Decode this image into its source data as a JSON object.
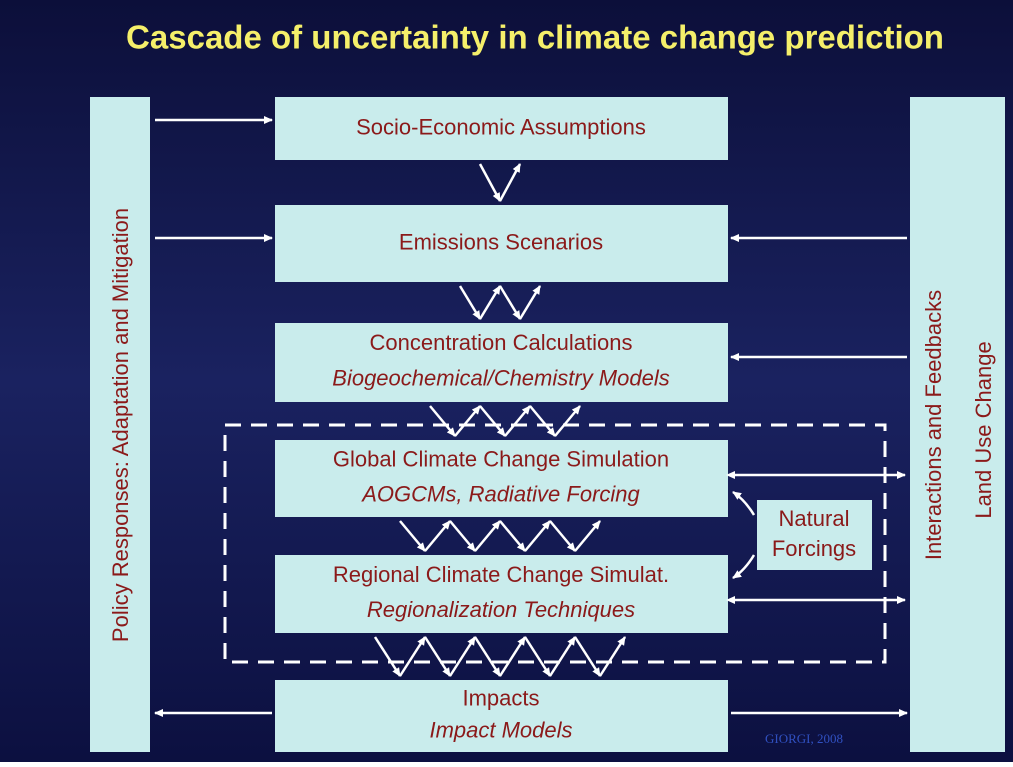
{
  "title": "Cascade of uncertainty in climate change prediction",
  "left_panel": {
    "label": "Policy Responses: Adaptation and Mitigation"
  },
  "right_panel": {
    "labels": [
      "Interactions and Feedbacks",
      "Land Use Change"
    ]
  },
  "boxes": [
    {
      "label": "Socio-Economic Assumptions"
    },
    {
      "label": "Emissions Scenarios"
    },
    {
      "label": "Concentration Calculations",
      "sublabel": "Biogeochemical/Chemistry Models"
    },
    {
      "label": "Global Climate Change Simulation",
      "sublabel": "AOGCMs, Radiative Forcing"
    },
    {
      "label": "Regional Climate Change Simulat.",
      "sublabel": "Regionalization Techniques"
    },
    {
      "label": "Impacts",
      "sublabel": "Impact Models"
    }
  ],
  "natural_forcings": {
    "lines": [
      "Natural",
      "Forcings"
    ]
  },
  "credit": "GIORGI, 2008"
}
